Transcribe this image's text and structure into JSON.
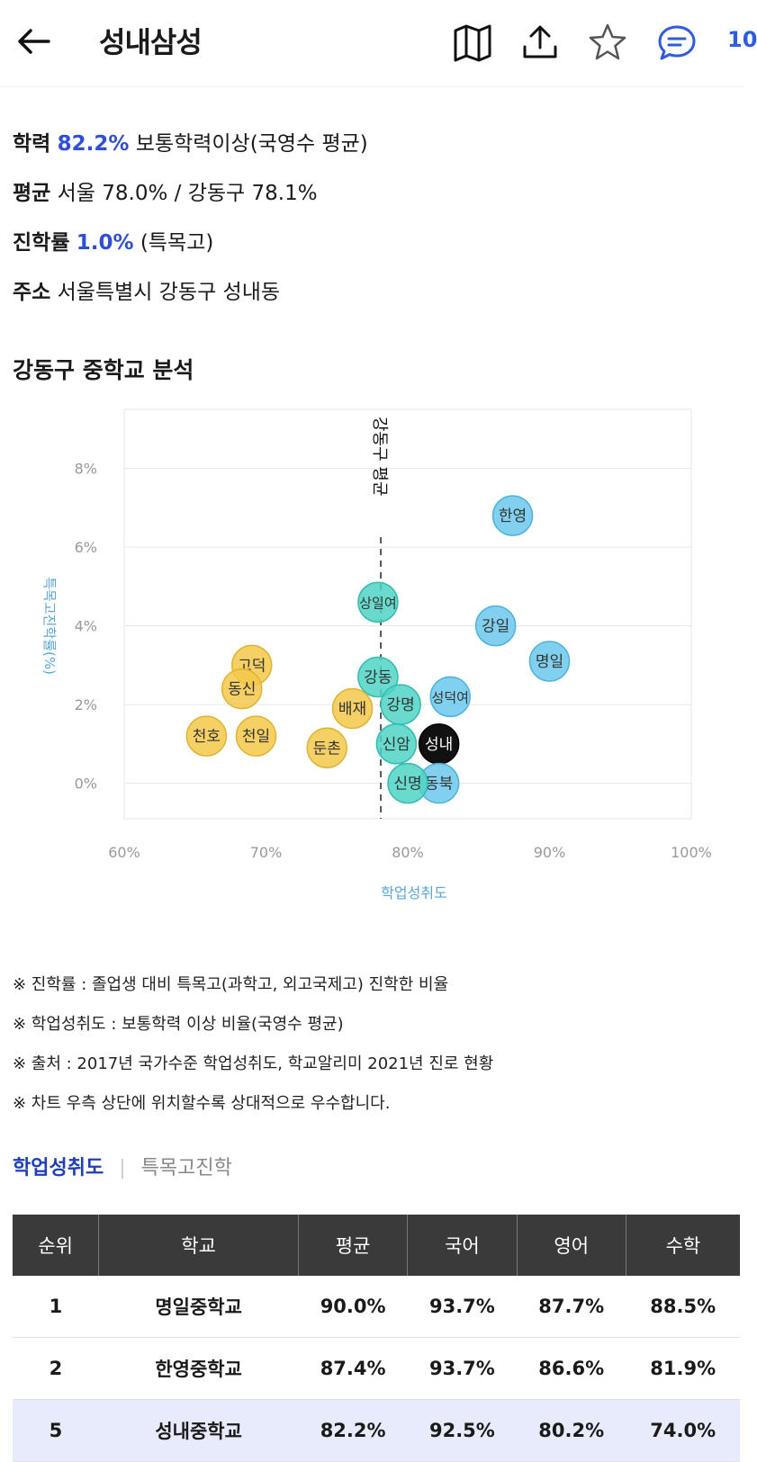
{
  "header": {
    "title": "성내삼성",
    "comment_count": "10"
  },
  "info": {
    "academic": {
      "label": "학력",
      "value": "82.2%",
      "desc": "보통학력이상(국영수 평균)"
    },
    "average": {
      "label": "평균",
      "text": "서울 78.0% / 강동구 78.1%"
    },
    "advance": {
      "label": "진학률",
      "value": "1.0%",
      "desc": "(특목고)"
    },
    "address": {
      "label": "주소",
      "text": "서울특별시 강동구 성내동"
    }
  },
  "section_title": "강동구 중학교 분석",
  "chart_data": {
    "type": "scatter",
    "xlabel": "학업성취도",
    "ylabel": "특목고진학률(%)",
    "xlim": [
      60,
      100
    ],
    "ylim": [
      -0.9,
      9.5
    ],
    "x_ticks": [
      "60%",
      "70%",
      "80%",
      "90%",
      "100%"
    ],
    "y_ticks": [
      "0%",
      "2%",
      "4%",
      "6%",
      "8%"
    ],
    "reference_line": {
      "x": 78.1,
      "label": "강동구 평균"
    },
    "colors": {
      "low": "#f2c84a",
      "mid": "#4fd4c4",
      "high": "#6cc8ec",
      "self": "#111111"
    },
    "points": [
      {
        "label": "한영",
        "x": 87.4,
        "y": 6.8,
        "group": "high"
      },
      {
        "label": "상일여",
        "x": 77.9,
        "y": 4.6,
        "group": "mid"
      },
      {
        "label": "강일",
        "x": 86.2,
        "y": 4.0,
        "group": "high"
      },
      {
        "label": "명일",
        "x": 90.0,
        "y": 3.1,
        "group": "high"
      },
      {
        "label": "고덕",
        "x": 69.0,
        "y": 3.0,
        "group": "low"
      },
      {
        "label": "강동",
        "x": 77.9,
        "y": 2.7,
        "group": "mid"
      },
      {
        "label": "동신",
        "x": 68.3,
        "y": 2.4,
        "group": "low"
      },
      {
        "label": "성덕여",
        "x": 83.0,
        "y": 2.2,
        "group": "high"
      },
      {
        "label": "강명",
        "x": 79.5,
        "y": 2.0,
        "group": "mid"
      },
      {
        "label": "배재",
        "x": 76.1,
        "y": 1.9,
        "group": "low"
      },
      {
        "label": "천호",
        "x": 65.8,
        "y": 1.2,
        "group": "low"
      },
      {
        "label": "천일",
        "x": 69.3,
        "y": 1.2,
        "group": "low"
      },
      {
        "label": "둔촌",
        "x": 74.3,
        "y": 0.9,
        "group": "low"
      },
      {
        "label": "신암",
        "x": 79.2,
        "y": 1.0,
        "group": "mid"
      },
      {
        "label": "성내",
        "x": 82.2,
        "y": 1.0,
        "group": "self"
      },
      {
        "label": "동북",
        "x": 82.2,
        "y": 0.0,
        "group": "high"
      },
      {
        "label": "신명",
        "x": 80.0,
        "y": 0.0,
        "group": "mid"
      }
    ]
  },
  "notes": [
    "※ 진학률 : 졸업생 대비 특목고(과학고, 외고국제고) 진학한 비율",
    "※ 학업성취도 : 보통학력 이상 비율(국영수 평균)",
    "※ 출처 : 2017년 국가수준 학업성취도, 학교알리미 2021년 진로 현황",
    "※ 차트 우측 상단에 위치할수록 상대적으로 우수합니다."
  ],
  "tabs": {
    "active": "학업성취도",
    "inactive": "특목고진학"
  },
  "table": {
    "headers": [
      "순위",
      "학교",
      "평균",
      "국어",
      "영어",
      "수학"
    ],
    "rows": [
      [
        "1",
        "명일중학교",
        "90.0%",
        "93.7%",
        "87.7%",
        "88.5%"
      ],
      [
        "2",
        "한영중학교",
        "87.4%",
        "93.7%",
        "86.6%",
        "81.9%"
      ],
      [
        "5",
        "성내중학교",
        "82.2%",
        "92.5%",
        "80.2%",
        "74.0%"
      ]
    ]
  }
}
